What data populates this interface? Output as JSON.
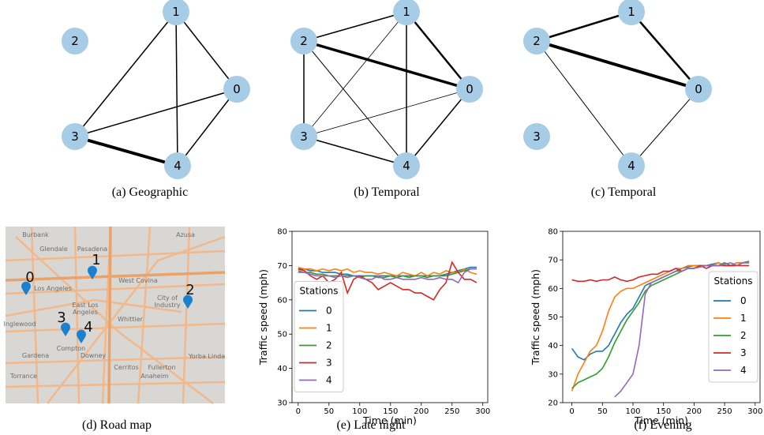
{
  "graphs": [
    {
      "caption": "(a) Geographic",
      "nodes": [
        "0",
        "1",
        "2",
        "3",
        "4"
      ]
    },
    {
      "caption": "(b) Temporal",
      "nodes": [
        "0",
        "1",
        "2",
        "3",
        "4"
      ]
    },
    {
      "caption": "(c) Temporal",
      "nodes": [
        "0",
        "1",
        "2",
        "3",
        "4"
      ]
    }
  ],
  "map": {
    "caption": "(d) Road map",
    "places": [
      "Burbank",
      "Glendale",
      "Pasadena",
      "Azusa",
      "Los Angeles",
      "East Los",
      "Angeles",
      "West Covina",
      "City of",
      "Industry",
      "Whittier",
      "Inglewood",
      "Gardena",
      "Compton",
      "Downey",
      "Torrance",
      "Cerritos",
      "Fullerton",
      "Anaheim",
      "Yorba Linda"
    ],
    "markers": [
      "0",
      "1",
      "2",
      "3",
      "4"
    ]
  },
  "chart_data": [
    {
      "type": "line",
      "caption": "(e) Late night",
      "x_label": "Time (min)",
      "y_label": "Traffic speed (mph)",
      "x": [
        0,
        10,
        20,
        30,
        40,
        50,
        60,
        70,
        80,
        90,
        100,
        110,
        120,
        130,
        140,
        150,
        160,
        170,
        180,
        190,
        200,
        210,
        220,
        230,
        240,
        250,
        260,
        270,
        280,
        290
      ],
      "xlim": [
        -10,
        308
      ],
      "xticks": [
        0,
        50,
        100,
        150,
        200,
        250,
        300
      ],
      "ylim": [
        30,
        80
      ],
      "yticks": [
        30,
        40,
        50,
        60,
        70,
        80
      ],
      "legend_title": "Stations",
      "legend": "center left",
      "series": [
        {
          "name": "0",
          "color": "#1f77b4",
          "values": [
            69,
            69,
            68.5,
            68.5,
            68,
            68,
            68,
            67.5,
            67.5,
            67,
            67,
            67,
            67,
            67,
            67,
            67,
            67,
            67,
            67,
            67,
            67,
            67,
            67,
            67,
            67.5,
            68,
            68.5,
            69,
            69.5,
            69.5
          ]
        },
        {
          "name": "1",
          "color": "#ff7f0e",
          "values": [
            69.5,
            69,
            69,
            68.5,
            69,
            68.5,
            69,
            68.5,
            69,
            68,
            68.5,
            68,
            68,
            67.5,
            68,
            67.5,
            67,
            68,
            67.5,
            67,
            68,
            67,
            68,
            67.5,
            68.5,
            68,
            68,
            69,
            68,
            67.5
          ]
        },
        {
          "name": "2",
          "color": "#2ca02c",
          "values": [
            68.5,
            68,
            68,
            67.5,
            67.5,
            67,
            67,
            67,
            67,
            67,
            66.5,
            67,
            67,
            66.5,
            66.5,
            67,
            66.5,
            67,
            66.5,
            67,
            67,
            66.5,
            67,
            67,
            67,
            67.5,
            68,
            68.5,
            69,
            69
          ]
        },
        {
          "name": "3",
          "color": "#d62728",
          "values": [
            69,
            68.5,
            67,
            66,
            67,
            65,
            66,
            68,
            62,
            66,
            67,
            66,
            65,
            63,
            64,
            65,
            64,
            63,
            63,
            62,
            62,
            61,
            60,
            63,
            65,
            71,
            68,
            66,
            66,
            65
          ]
        },
        {
          "name": "4",
          "color": "#9467bd",
          "values": [
            68,
            68,
            67.5,
            67,
            67,
            67,
            66.5,
            67,
            66.5,
            67,
            66.5,
            66,
            66,
            67,
            66,
            66,
            66.5,
            66,
            66,
            66,
            66.5,
            66,
            66,
            66.5,
            66,
            66,
            65,
            68,
            69,
            69
          ]
        }
      ]
    },
    {
      "type": "line",
      "caption": "(f) Evening",
      "x_label": "Time (min)",
      "y_label": "Traffic speed (mph)",
      "x": [
        0,
        10,
        20,
        30,
        40,
        50,
        60,
        70,
        80,
        90,
        100,
        110,
        120,
        130,
        140,
        150,
        160,
        170,
        180,
        190,
        200,
        210,
        220,
        230,
        240,
        250,
        260,
        270,
        280,
        290
      ],
      "xlim": [
        -15,
        308
      ],
      "xticks": [
        0,
        50,
        100,
        150,
        200,
        250,
        300
      ],
      "ylim": [
        20,
        80
      ],
      "yticks": [
        20,
        30,
        40,
        50,
        60,
        70,
        80
      ],
      "legend_title": "Stations",
      "legend": "lower right",
      "series": [
        {
          "name": "0",
          "color": "#1f77b4",
          "values": [
            39,
            36,
            35,
            37,
            38,
            38,
            40,
            44,
            48,
            51,
            53,
            57,
            61,
            62,
            63,
            64,
            65,
            66,
            67,
            67.5,
            68,
            68,
            68,
            68.5,
            69,
            68,
            68,
            69,
            69,
            69.5
          ]
        },
        {
          "name": "1",
          "color": "#ff7f0e",
          "values": [
            24,
            30,
            34,
            38,
            40,
            45,
            52,
            57,
            59,
            60,
            60,
            61,
            62,
            63,
            64,
            65,
            66,
            67,
            67,
            68,
            68,
            68,
            68,
            68,
            69,
            68,
            68,
            69,
            69,
            69
          ]
        },
        {
          "name": "2",
          "color": "#2ca02c",
          "values": [
            25,
            27,
            28,
            29,
            30,
            32,
            36,
            41,
            45,
            49,
            52,
            55,
            59,
            61,
            62,
            63,
            64,
            65,
            66,
            67,
            67,
            68,
            68,
            68,
            68,
            69,
            68,
            68,
            69,
            69
          ]
        },
        {
          "name": "3",
          "color": "#d62728",
          "values": [
            63,
            62.5,
            62.5,
            63,
            62.5,
            63,
            63,
            64,
            63,
            62.5,
            63,
            64,
            64.5,
            65,
            65,
            66,
            66,
            67,
            66,
            67,
            67,
            68,
            67,
            68,
            68,
            68,
            68,
            68,
            68,
            68
          ]
        },
        {
          "name": "4",
          "color": "#9467bd",
          "values": [
            null,
            null,
            null,
            null,
            null,
            null,
            null,
            22,
            24,
            27,
            30,
            40,
            58,
            62,
            63,
            64,
            65,
            66,
            66,
            67,
            67,
            67.5,
            68,
            68,
            68,
            68.5,
            69,
            68,
            69,
            69.5
          ]
        }
      ]
    }
  ]
}
